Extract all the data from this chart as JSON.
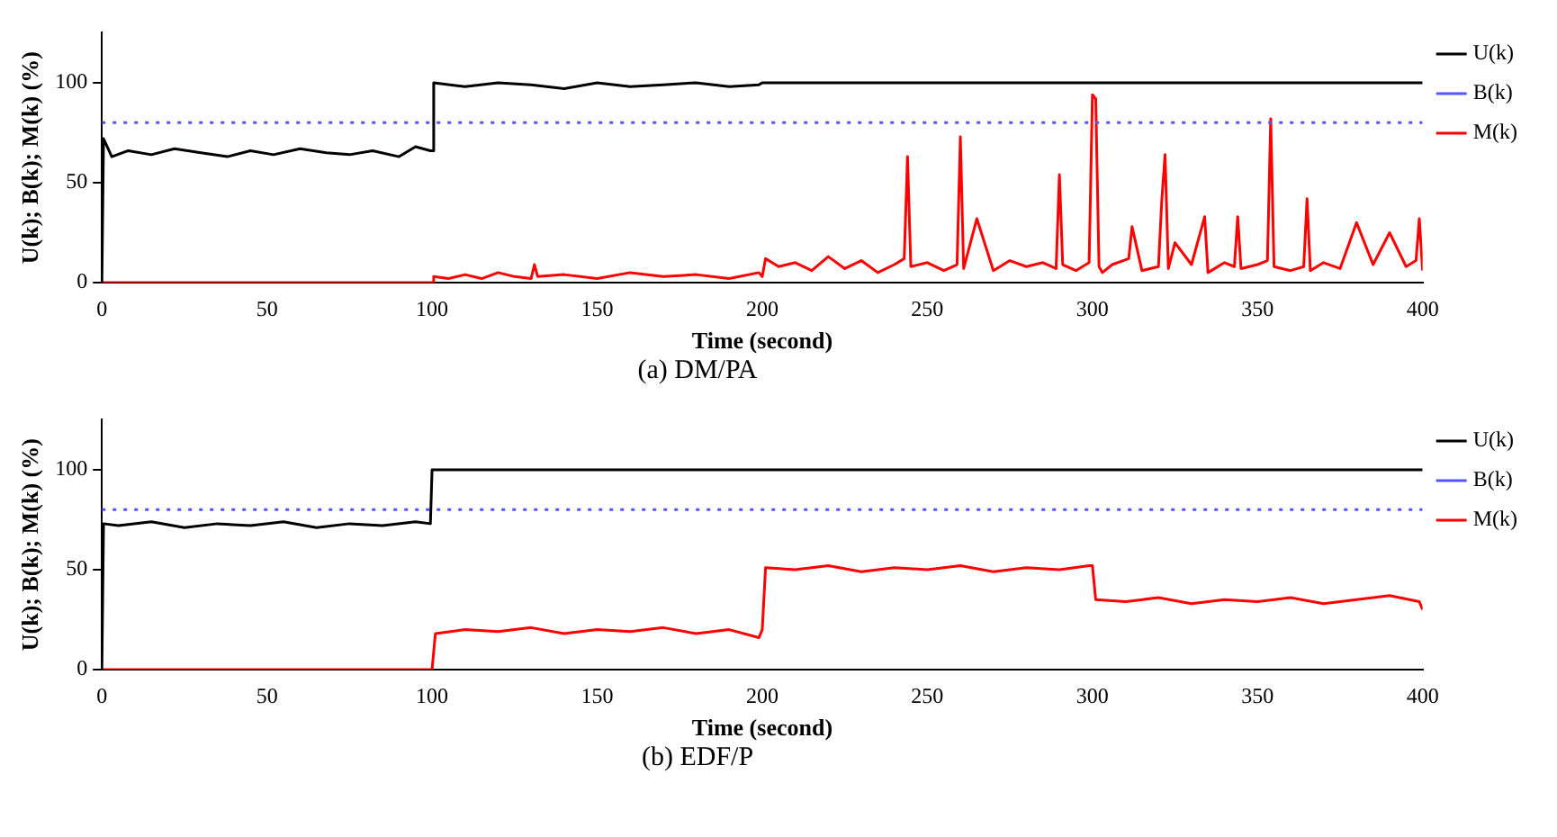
{
  "chart_data": [
    {
      "type": "line",
      "xlabel": "Time (second)",
      "ylabel": "U(k); B(k); M(k) (%)",
      "annotations": [
        "(a) DM/PA"
      ],
      "xlim": [
        0,
        400
      ],
      "xticks": [
        0,
        50,
        100,
        150,
        200,
        250,
        300,
        350,
        400
      ],
      "ylim": [
        0,
        125
      ],
      "yticks": [
        0,
        50,
        100
      ],
      "grid": false,
      "legend": "right",
      "marker": "none",
      "series": [
        {
          "name": "U(k)",
          "color": "#000000",
          "line_style": "solid",
          "x": [
            0,
            0.5,
            3,
            8,
            15,
            22,
            30,
            38,
            45,
            52,
            60,
            68,
            75,
            82,
            90,
            95,
            99.5,
            100,
            100.5,
            110,
            120,
            130,
            140,
            150,
            160,
            170,
            180,
            190,
            199,
            200,
            400
          ],
          "values": [
            0,
            72,
            63,
            66,
            64,
            67,
            65,
            63,
            66,
            64,
            67,
            65,
            64,
            66,
            63,
            68,
            66,
            66,
            100,
            98,
            100,
            99,
            97,
            100,
            98,
            99,
            100,
            98,
            99,
            100,
            100
          ]
        },
        {
          "name": "B(k)",
          "color": "#5555ff",
          "line_style": "dotted",
          "x": [
            0,
            400
          ],
          "values": [
            80,
            80
          ]
        },
        {
          "name": "M(k)",
          "color": "#ff0000",
          "line_style": "solid",
          "x": [
            0,
            100,
            100.5,
            105,
            110,
            115,
            120,
            125,
            130,
            131,
            132,
            140,
            150,
            160,
            170,
            180,
            190,
            199,
            200,
            201,
            205,
            210,
            215,
            220,
            225,
            230,
            235,
            240,
            243,
            244,
            245,
            250,
            255,
            259,
            260,
            261,
            265,
            270,
            275,
            280,
            285,
            289,
            290,
            291,
            295,
            299,
            300,
            301,
            302,
            303,
            306,
            311,
            312,
            315,
            320,
            321,
            322,
            323,
            325,
            330,
            334,
            335,
            340,
            343,
            344,
            345,
            350,
            353,
            354,
            355,
            360,
            364,
            365,
            366,
            370,
            375,
            380,
            385,
            390,
            395,
            398,
            399,
            400
          ],
          "values": [
            0,
            0,
            3,
            2,
            4,
            2,
            5,
            3,
            2,
            9,
            3,
            4,
            2,
            5,
            3,
            4,
            2,
            5,
            3,
            12,
            8,
            10,
            6,
            13,
            7,
            11,
            5,
            9,
            12,
            63,
            8,
            10,
            6,
            9,
            73,
            7,
            32,
            6,
            11,
            8,
            10,
            7,
            54,
            9,
            6,
            10,
            94,
            92,
            8,
            5,
            9,
            12,
            28,
            6,
            8,
            41,
            64,
            7,
            20,
            9,
            33,
            5,
            10,
            8,
            33,
            7,
            9,
            11,
            82,
            8,
            6,
            8,
            42,
            6,
            10,
            7,
            30,
            9,
            25,
            8,
            11,
            32,
            6
          ]
        }
      ]
    },
    {
      "type": "line",
      "xlabel": "Time (second)",
      "ylabel": "U(k); B(k); M(k) (%)",
      "annotations": [
        "(b) EDF/P"
      ],
      "xlim": [
        0,
        400
      ],
      "xticks": [
        0,
        50,
        100,
        150,
        200,
        250,
        300,
        350,
        400
      ],
      "ylim": [
        0,
        125
      ],
      "yticks": [
        0,
        50,
        100
      ],
      "grid": false,
      "legend": "right",
      "marker": "none",
      "series": [
        {
          "name": "U(k)",
          "color": "#000000",
          "line_style": "solid",
          "x": [
            0,
            0.5,
            5,
            15,
            25,
            35,
            45,
            55,
            65,
            75,
            85,
            95,
            99.5,
            100,
            400
          ],
          "values": [
            0,
            73,
            72,
            74,
            71,
            73,
            72,
            74,
            71,
            73,
            72,
            74,
            73,
            100,
            100
          ]
        },
        {
          "name": "B(k)",
          "color": "#5555ff",
          "line_style": "dotted",
          "x": [
            0,
            400
          ],
          "values": [
            80,
            80
          ]
        },
        {
          "name": "M(k)",
          "color": "#ff0000",
          "line_style": "solid",
          "x": [
            0,
            100,
            101,
            110,
            120,
            130,
            140,
            150,
            160,
            170,
            180,
            190,
            199,
            200,
            201,
            210,
            220,
            230,
            240,
            250,
            260,
            270,
            280,
            290,
            299,
            300,
            301,
            310,
            320,
            330,
            340,
            350,
            360,
            370,
            380,
            390,
            399,
            400
          ],
          "values": [
            0,
            0,
            18,
            20,
            19,
            21,
            18,
            20,
            19,
            21,
            18,
            20,
            16,
            20,
            51,
            50,
            52,
            49,
            51,
            50,
            52,
            49,
            51,
            50,
            52,
            52,
            35,
            34,
            36,
            33,
            35,
            34,
            36,
            33,
            35,
            37,
            34,
            30
          ]
        }
      ]
    }
  ]
}
